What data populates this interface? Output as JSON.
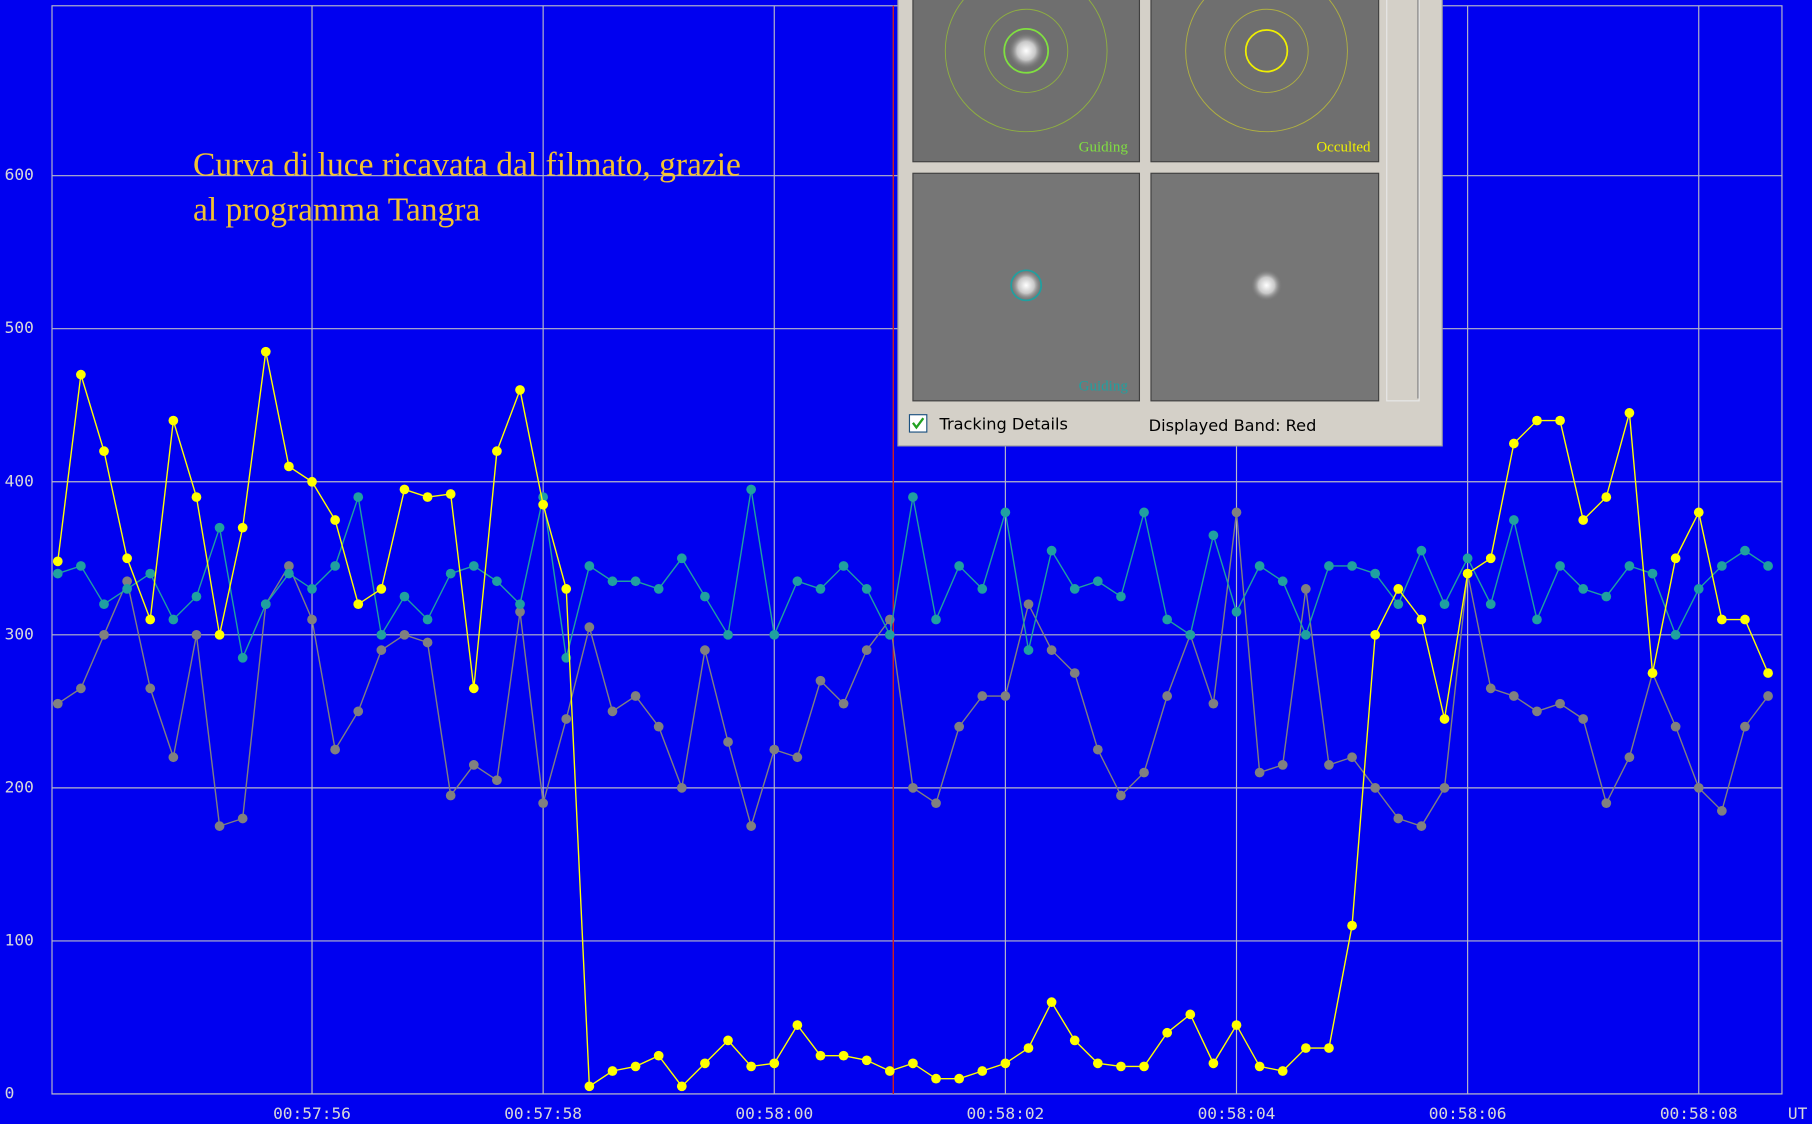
{
  "chart_data": {
    "type": "line",
    "x_label": "UT",
    "annotation": [
      "Curva di luce ricavata dal filmato, grazie",
      "al programma Tangra"
    ],
    "xlim": [
      3473.75,
      3488.72
    ],
    "ylim": [
      0,
      711
    ],
    "xticks": [
      {
        "value": 3476,
        "label": "00:57:56"
      },
      {
        "value": 3478,
        "label": "00:57:58"
      },
      {
        "value": 3480,
        "label": "00:58:00"
      },
      {
        "value": 3482,
        "label": "00:58:02"
      },
      {
        "value": 3484,
        "label": "00:58:04"
      },
      {
        "value": 3486,
        "label": "00:58:06"
      },
      {
        "value": 3488,
        "label": "00:58:08"
      }
    ],
    "yticks": [
      0,
      100,
      200,
      300,
      400,
      500,
      600
    ],
    "grid": true,
    "cursor_x": 3481.03,
    "cursor_color": "#d02020",
    "x": [
      3473.8,
      3474,
      3474.2,
      3474.4,
      3474.6,
      3474.8,
      3475,
      3475.2,
      3475.4,
      3475.6,
      3475.8,
      3476,
      3476.2,
      3476.4,
      3476.6,
      3476.8,
      3477,
      3477.2,
      3477.4,
      3477.6,
      3477.8,
      3478,
      3478.2,
      3478.4,
      3478.6,
      3478.8,
      3479,
      3479.2,
      3479.4,
      3479.6,
      3479.8,
      3480,
      3480.2,
      3480.4,
      3480.6,
      3480.8,
      3481,
      3481.2,
      3481.4,
      3481.6,
      3481.8,
      3482,
      3482.2,
      3482.4,
      3482.6,
      3482.8,
      3483,
      3483.2,
      3483.4,
      3483.6,
      3483.8,
      3484,
      3484.2,
      3484.4,
      3484.6,
      3484.8,
      3485,
      3485.2,
      3485.4,
      3485.6,
      3485.8,
      3486,
      3486.2,
      3486.4,
      3486.6,
      3486.8,
      3487,
      3487.2,
      3487.4,
      3487.6,
      3487.8,
      3488,
      3488.2,
      3488.4,
      3488.6
    ],
    "series": [
      {
        "color": "#808080",
        "values": [
          255,
          265,
          300,
          335,
          265,
          220,
          300,
          175,
          180,
          320,
          345,
          310,
          225,
          250,
          290,
          300,
          295,
          195,
          215,
          205,
          315,
          190,
          245,
          305,
          250,
          260,
          240,
          200,
          290,
          230,
          175,
          225,
          220,
          270,
          255,
          290,
          310,
          200,
          190,
          240,
          260,
          260,
          320,
          290,
          275,
          225,
          195,
          210,
          260,
          300,
          255,
          380,
          210,
          215,
          330,
          215,
          220,
          200,
          180,
          175,
          200,
          340,
          265,
          260,
          250,
          255,
          245,
          190,
          220,
          275,
          240,
          200,
          185,
          240,
          260
        ]
      },
      {
        "color": "#20a0a0",
        "values": [
          340,
          345,
          320,
          330,
          340,
          310,
          325,
          370,
          285,
          320,
          340,
          330,
          345,
          390,
          300,
          325,
          310,
          340,
          345,
          335,
          320,
          390,
          285,
          345,
          335,
          335,
          330,
          350,
          325,
          300,
          395,
          300,
          335,
          330,
          345,
          330,
          300,
          390,
          310,
          345,
          330,
          380,
          290,
          355,
          330,
          335,
          325,
          380,
          310,
          300,
          365,
          315,
          345,
          335,
          300,
          345,
          345,
          340,
          320,
          355,
          320,
          350,
          320,
          375,
          310,
          345,
          330,
          325,
          345,
          340,
          300,
          330,
          345,
          355,
          345
        ]
      },
      {
        "color": "#ffff00",
        "values": [
          348,
          470,
          420,
          350,
          310,
          440,
          390,
          300,
          370,
          485,
          410,
          400,
          375,
          320,
          330,
          395,
          390,
          392,
          265,
          420,
          460,
          385,
          330,
          5,
          15,
          18,
          25,
          5,
          20,
          35,
          18,
          20,
          45,
          25,
          25,
          22,
          15,
          20,
          10,
          10,
          15,
          20,
          30,
          60,
          35,
          20,
          18,
          18,
          40,
          52,
          20,
          45,
          18,
          15,
          30,
          30,
          110,
          300,
          330,
          310,
          245,
          340,
          350,
          425,
          440,
          440,
          375,
          390,
          445,
          275,
          350,
          380,
          310,
          310,
          275
        ]
      }
    ]
  },
  "tracking_panel": {
    "image_labels": [
      "Guiding",
      "Occulted",
      "Guiding"
    ],
    "checkbox": "Tracking Details",
    "band": "Displayed Band: Red"
  }
}
